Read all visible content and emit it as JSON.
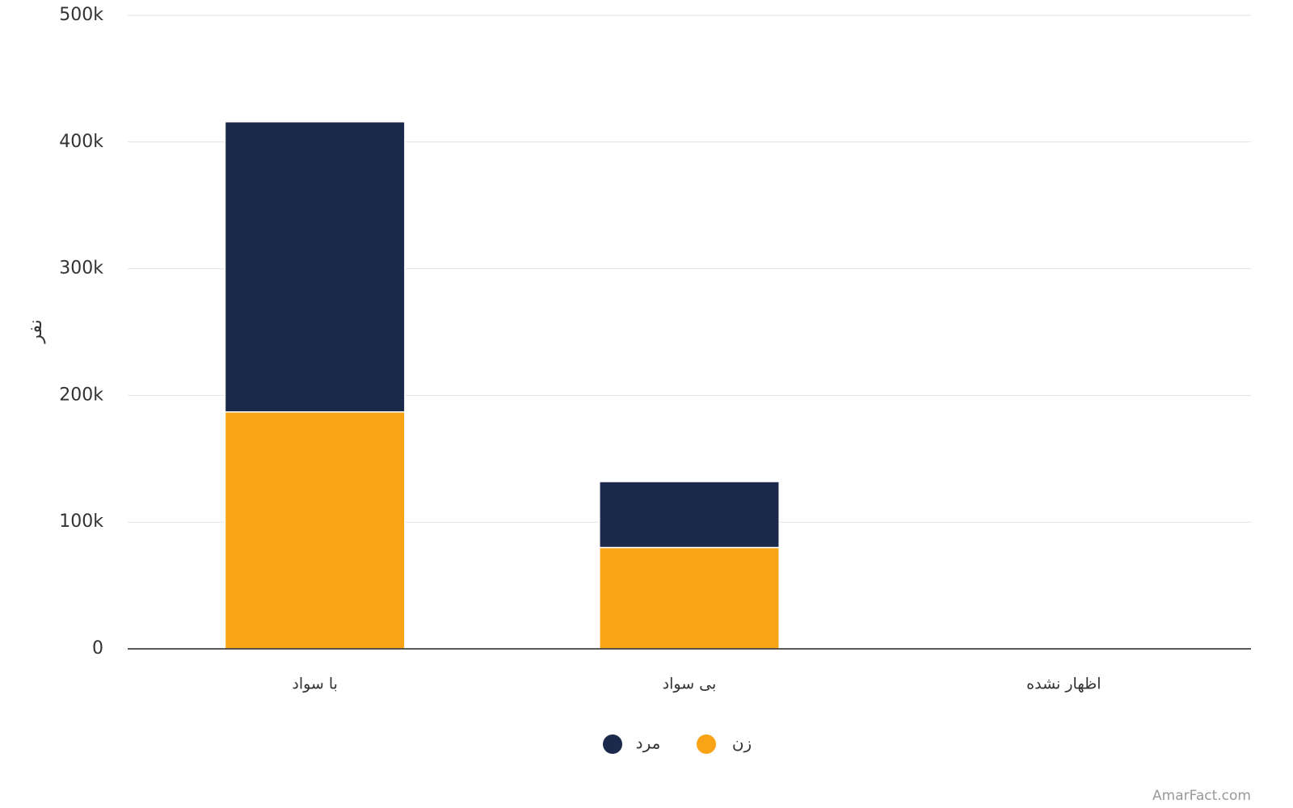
{
  "chart_data": {
    "type": "stacked_bar",
    "y_label": "نفر",
    "categories": [
      "با سواد",
      "بی سواد",
      "اظهار نشده"
    ],
    "series": [
      {
        "name": "زن",
        "color": "#f9a416",
        "values": [
          187000,
          80000,
          0
        ]
      },
      {
        "name": "مرد",
        "color": "#1b2a4c",
        "values": [
          229000,
          52000,
          0
        ]
      }
    ],
    "ylim": [
      0,
      500000
    ],
    "yticks": [
      0,
      {
        "value": 100000,
        "label": "100k"
      },
      {
        "value": 200000,
        "label": "200k"
      },
      {
        "value": 300000,
        "label": "300k"
      },
      {
        "value": 400000,
        "label": "400k"
      },
      {
        "value": 500000,
        "label": "500k"
      }
    ],
    "grid": true,
    "legend": "bottom",
    "watermark": "AmarFact.com"
  }
}
